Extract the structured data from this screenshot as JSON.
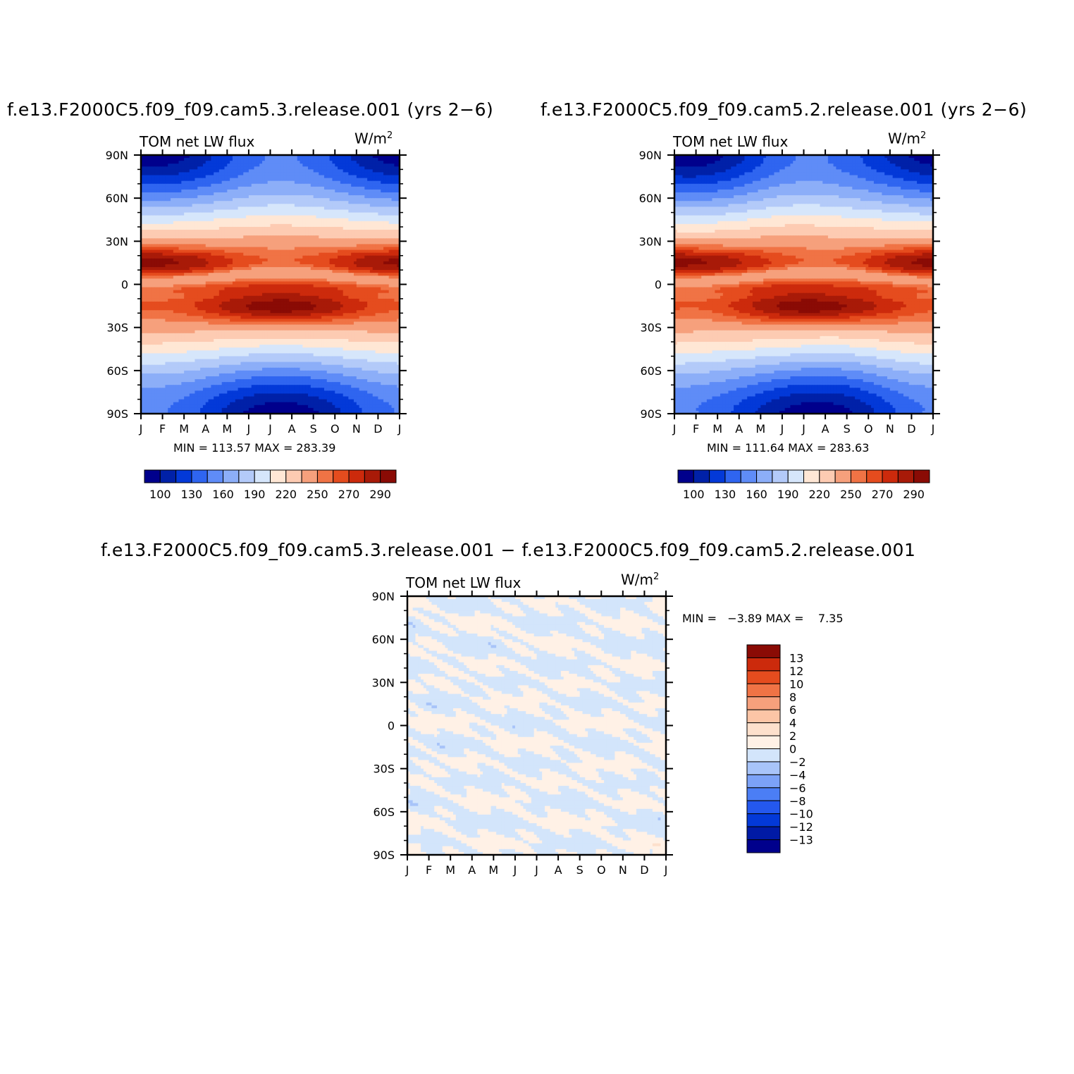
{
  "colors": {
    "abs_levels": [
      "#00008c",
      "#0021a8",
      "#0339d8",
      "#2f65f0",
      "#5f8cf7",
      "#8caef8",
      "#b3caf9",
      "#d6e6fb",
      "#ffe7d5",
      "#fdcbb2",
      "#f6a07c",
      "#f07345",
      "#e54c1e",
      "#cc2a0c",
      "#a81a08",
      "#8a0b05"
    ],
    "diff_levels": [
      "#00008c",
      "#001aa5",
      "#0339d8",
      "#2458ee",
      "#4b7ef5",
      "#7ca2f7",
      "#a8c4f9",
      "#d3e5fb",
      "#fff1e6",
      "#fde0cc",
      "#fcc5a6",
      "#f6a07c",
      "#f07345",
      "#e54c1e",
      "#cc2a0c",
      "#8a0b05"
    ]
  },
  "panels": [
    {
      "title": "f.e13.F2000C5.f09_f09.cam5.3.release.001 (yrs 2−6)",
      "left_label": "TOM net LW flux",
      "units_base": "W/m",
      "units_exp": "2",
      "minmax": "MIN = 113.57 MAX = 283.39"
    },
    {
      "title": "f.e13.F2000C5.f09_f09.cam5.2.release.001 (yrs 2−6)",
      "left_label": "TOM net LW flux",
      "units_base": "W/m",
      "units_exp": "2",
      "minmax": "MIN = 111.64 MAX = 283.63"
    },
    {
      "title": "f.e13.F2000C5.f09_f09.cam5.3.release.001 − f.e13.F2000C5.f09_f09.cam5.2.release.001",
      "left_label": "TOM net LW flux",
      "units_base": "W/m",
      "units_exp": "2",
      "minmax": "MIN =   −3.89 MAX =    7.35"
    }
  ],
  "chart_data": [
    {
      "type": "heatmap",
      "x_ticks": [
        "J",
        "F",
        "M",
        "A",
        "M",
        "J",
        "J",
        "A",
        "S",
        "O",
        "N",
        "D",
        "J"
      ],
      "y_ticks": [
        "90N",
        "60N",
        "30N",
        "0",
        "30S",
        "60S",
        "90S"
      ],
      "ylim": [
        -90,
        90
      ],
      "min": 113.57,
      "max": 283.39,
      "colorbar_labels": [
        "100",
        "130",
        "160",
        "190",
        "220",
        "250",
        "270",
        "290"
      ],
      "colorbar_levels": 16
    },
    {
      "type": "heatmap",
      "x_ticks": [
        "J",
        "F",
        "M",
        "A",
        "M",
        "J",
        "J",
        "A",
        "S",
        "O",
        "N",
        "D",
        "J"
      ],
      "y_ticks": [
        "90N",
        "60N",
        "30N",
        "0",
        "30S",
        "60S",
        "90S"
      ],
      "ylim": [
        -90,
        90
      ],
      "min": 111.64,
      "max": 283.63,
      "colorbar_labels": [
        "100",
        "130",
        "160",
        "190",
        "220",
        "250",
        "270",
        "290"
      ],
      "colorbar_levels": 16
    },
    {
      "type": "heatmap",
      "x_ticks": [
        "J",
        "F",
        "M",
        "A",
        "M",
        "J",
        "J",
        "A",
        "S",
        "O",
        "N",
        "D",
        "J"
      ],
      "y_ticks": [
        "90N",
        "60N",
        "30N",
        "0",
        "30S",
        "60S",
        "90S"
      ],
      "ylim": [
        -90,
        90
      ],
      "min": -3.89,
      "max": 7.35,
      "colorbar_labels": [
        "13",
        "12",
        "10",
        "8",
        "6",
        "4",
        "2",
        "0",
        "−2",
        "−4",
        "−6",
        "−8",
        "−10",
        "−12",
        "−13"
      ],
      "colorbar_levels": 16
    }
  ]
}
